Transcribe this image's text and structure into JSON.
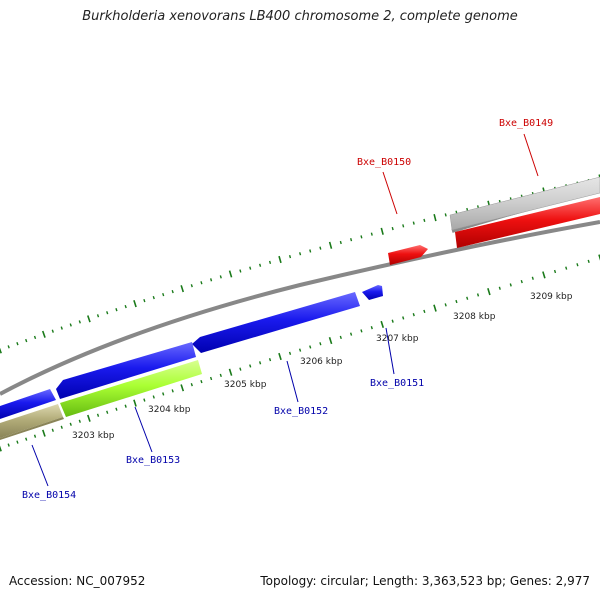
{
  "title": "Burkholderia xenovorans LB400 chromosome 2, complete genome",
  "footer": {
    "accession": "Accession: NC_007952",
    "summary": "Topology: circular; Length: 3,363,523 bp; Genes: 2,977"
  },
  "scale_labels": [
    "3203 kbp",
    "3204 kbp",
    "3205 kbp",
    "3206 kbp",
    "3207 kbp",
    "3208 kbp",
    "3209 kbp"
  ],
  "genes": [
    {
      "name": "Bxe_B0149",
      "strand": "forward",
      "color": "#ee0000"
    },
    {
      "name": "Bxe_B0150",
      "strand": "forward",
      "color": "#ee0000"
    },
    {
      "name": "Bxe_B0151",
      "strand": "reverse",
      "color": "#0000ee"
    },
    {
      "name": "Bxe_B0152",
      "strand": "reverse",
      "color": "#0000ee"
    },
    {
      "name": "Bxe_B0153",
      "strand": "reverse",
      "color": "#aaff33"
    },
    {
      "name": "Bxe_B0154",
      "strand": "reverse",
      "color": "#b3ad7a"
    }
  ],
  "colors": {
    "forward_label": "#cc0000",
    "reverse_label": "#0000aa",
    "tick": "#1a7a1a",
    "backbone": "#888888"
  }
}
